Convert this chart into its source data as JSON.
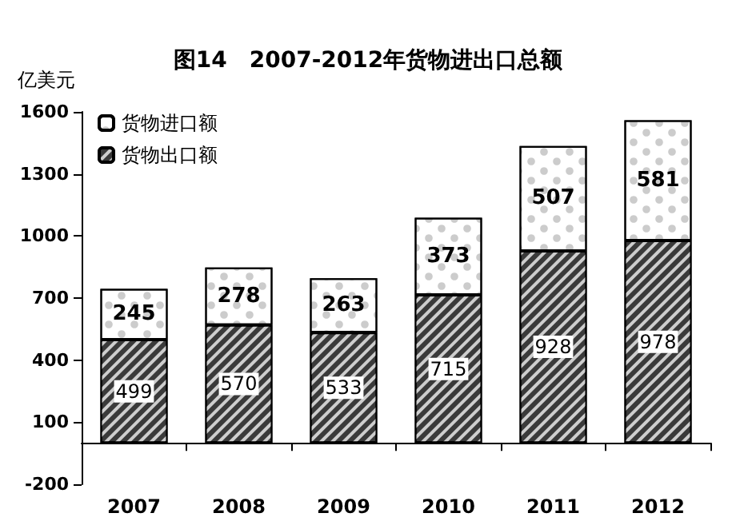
{
  "chart_data": {
    "type": "bar",
    "title": "图14　2007-2012年货物进出口总额",
    "ylabel": "亿美元",
    "categories": [
      "2007",
      "2008",
      "2009",
      "2010",
      "2011",
      "2012"
    ],
    "series": [
      {
        "name": "货物出口额",
        "color": "#3a3a3a",
        "values": [
          499,
          570,
          533,
          715,
          928,
          978
        ]
      },
      {
        "name": "货物进口额",
        "color": "#ffffff",
        "values": [
          245,
          278,
          263,
          373,
          507,
          581
        ]
      }
    ],
    "stacked": true,
    "data_labels": true,
    "ylim": [
      -200,
      1600
    ],
    "yticks": [
      -200,
      100,
      400,
      700,
      1000,
      1300,
      1600
    ],
    "grid": false,
    "legend": "top left"
  }
}
